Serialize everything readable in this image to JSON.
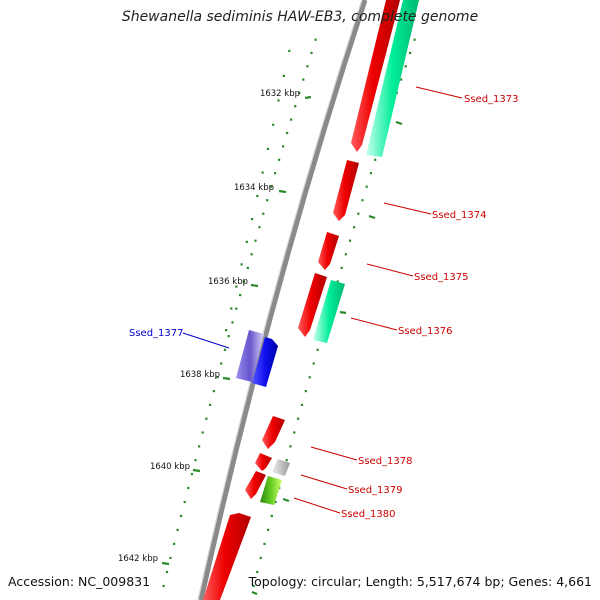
{
  "title": "Shewanella sediminis HAW-EB3, complete genome",
  "footer": {
    "accession": "Accession: NC_009831",
    "topology": "Topology: circular; Length: 5,517,674 bp; Genes: 4,661"
  },
  "ticks": [
    "1632 kbp",
    "1634 kbp",
    "1636 kbp",
    "1638 kbp",
    "1640 kbp",
    "1642 kbp"
  ],
  "gene_labels": [
    "Ssed_1373",
    "Ssed_1374",
    "Ssed_1375",
    "Ssed_1376",
    "Ssed_1377",
    "Ssed_1378",
    "Ssed_1379",
    "Ssed_1380"
  ],
  "colors": {
    "forward_cds": "#ee0000",
    "other_cds": "#00ee99",
    "reverse_cds": "#2222ee",
    "reverse_cds_light": "#7766dd",
    "grey_feature": "#bbbbbb",
    "green_feature": "#55bb22",
    "label_red": "#cc0000",
    "label_blue": "#0000cc",
    "backbone": "#888888",
    "dots": "#228b22"
  }
}
